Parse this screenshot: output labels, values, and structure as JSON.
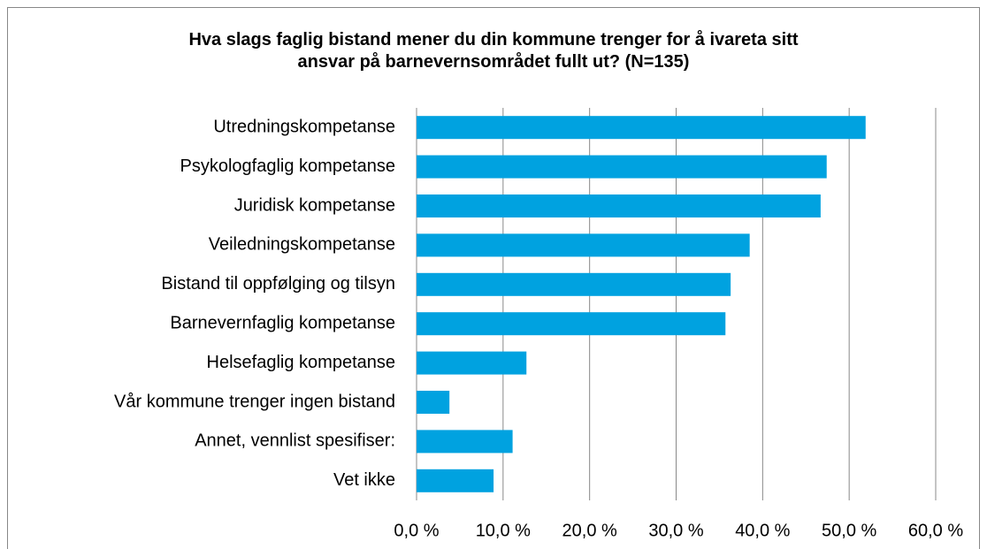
{
  "chart_data": {
    "type": "hbar",
    "title": "Hva slags faglig bistand mener du din kommune trenger for å ivareta sitt ansvar på barnevernsområdet fullt ut? (N=135)",
    "categories": [
      "Utredningskompetanse",
      "Psykologfaglig kompetanse",
      "Juridisk kompetanse",
      "Veiledningskompetanse",
      "Bistand til oppfølging og tilsyn",
      "Barnevernfaglig kompetanse",
      "Helsefaglig kompetanse",
      "Vår kommune trenger ingen bistand",
      "Annet, vennlist spesifiser:",
      "Vet ikke"
    ],
    "values": [
      51.9,
      47.4,
      46.7,
      38.5,
      36.3,
      35.7,
      12.7,
      3.8,
      11.1,
      8.9
    ],
    "color": "#00a2e0",
    "xlim": [
      0,
      60
    ],
    "xticks": [
      {
        "value": 0,
        "label": "0,0 %"
      },
      {
        "value": 10,
        "label": "10,0 %"
      },
      {
        "value": 20,
        "label": "20,0 %"
      },
      {
        "value": 30,
        "label": "30,0 %"
      },
      {
        "value": 40,
        "label": "40,0 %"
      },
      {
        "value": 50,
        "label": "50,0 %"
      },
      {
        "value": 60,
        "label": "60,0 %"
      }
    ],
    "grid": true
  }
}
